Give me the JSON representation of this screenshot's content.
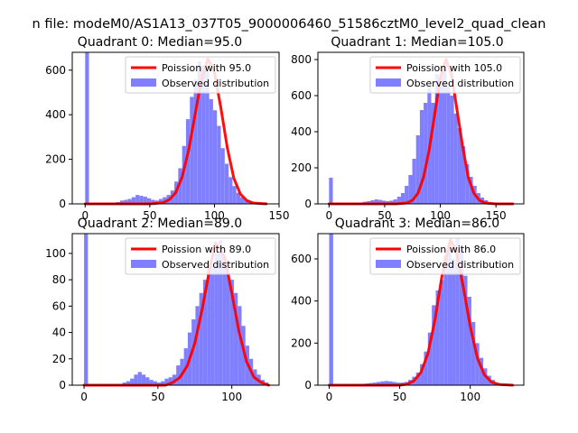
{
  "figure": {
    "suptitle": "n file: modeM0/AS1A13_037T05_9000006460_51586cztM0_level2_quad_clean"
  },
  "colors": {
    "poisson": "#ff0000",
    "observed": "#7f7fff",
    "axis": "#000000"
  },
  "chart_data": [
    {
      "type": "bar",
      "title": "Quadrant 0: Median=95.0",
      "median": 95.0,
      "xlim": [
        -10,
        150
      ],
      "ylim": [
        0,
        680
      ],
      "xticks": [
        0,
        50,
        100,
        150
      ],
      "yticks": [
        0,
        200,
        400,
        600
      ],
      "bin_width": 2.94,
      "hist": {
        "x": [
          0,
          3,
          6,
          9,
          12,
          15,
          18,
          21,
          24,
          27,
          30,
          33,
          36,
          39,
          42,
          45,
          48,
          51,
          54,
          57,
          60,
          63,
          66,
          69,
          72,
          75,
          78,
          81,
          84,
          87,
          90,
          93,
          96,
          99,
          102,
          105,
          108,
          111,
          114,
          117,
          120,
          123,
          126,
          129,
          132,
          135,
          138,
          141
        ],
        "y": [
          680,
          0,
          0,
          0,
          0,
          2,
          3,
          5,
          8,
          15,
          18,
          22,
          30,
          40,
          36,
          32,
          25,
          18,
          15,
          22,
          30,
          40,
          60,
          100,
          160,
          260,
          380,
          480,
          560,
          640,
          620,
          600,
          470,
          420,
          350,
          250,
          180,
          120,
          80,
          50,
          30,
          18,
          10,
          6,
          3,
          2,
          1,
          0
        ]
      },
      "poisson": {
        "x": [
          0,
          50,
          60,
          65,
          70,
          75,
          80,
          85,
          90,
          95,
          100,
          105,
          110,
          115,
          120,
          125,
          130,
          140
        ],
        "y": [
          0,
          0,
          5,
          18,
          50,
          120,
          240,
          400,
          560,
          650,
          590,
          430,
          250,
          115,
          45,
          15,
          4,
          0
        ]
      },
      "legend": {
        "line_label": "Poission with 95.0",
        "bar_label": "Observed distribution",
        "position": "upper right"
      }
    },
    {
      "type": "bar",
      "title": "Quadrant 1: Median=105.0",
      "median": 105.0,
      "xlim": [
        -10,
        175
      ],
      "ylim": [
        0,
        840
      ],
      "xticks": [
        0,
        50,
        100,
        150
      ],
      "yticks": [
        0,
        200,
        400,
        600,
        800
      ],
      "bin_width": 3.4,
      "hist": {
        "x": [
          0,
          3.4,
          6.8,
          10.2,
          13.6,
          17,
          20.4,
          23.8,
          27.2,
          30.6,
          34,
          37.4,
          40.8,
          44.2,
          47.6,
          51,
          54.4,
          57.8,
          61.2,
          64.6,
          68,
          71.4,
          74.8,
          78.2,
          81.6,
          85,
          88.4,
          91.8,
          95.2,
          98.6,
          102,
          105.4,
          108.8,
          112.2,
          115.6,
          119,
          122.4,
          125.8,
          129.2,
          132.6,
          136,
          139.4,
          142.8,
          146.2,
          149.6,
          153,
          156.4,
          159.8,
          163.2
        ],
        "y": [
          145,
          0,
          0,
          0,
          0,
          2,
          3,
          5,
          8,
          12,
          15,
          20,
          25,
          22,
          18,
          15,
          18,
          25,
          40,
          60,
          100,
          160,
          250,
          380,
          520,
          560,
          640,
          560,
          720,
          700,
          760,
          650,
          600,
          500,
          420,
          320,
          220,
          150,
          100,
          60,
          35,
          20,
          10,
          5,
          3,
          2,
          1,
          0,
          0
        ]
      },
      "poisson": {
        "x": [
          0,
          60,
          70,
          75,
          80,
          85,
          90,
          95,
          100,
          105,
          110,
          115,
          120,
          125,
          130,
          135,
          140,
          150,
          165
        ],
        "y": [
          0,
          0,
          5,
          20,
          60,
          150,
          300,
          500,
          700,
          800,
          720,
          520,
          320,
          150,
          60,
          20,
          5,
          0,
          0
        ]
      },
      "legend": {
        "line_label": "Poission with 105.0",
        "bar_label": "Observed distribution",
        "position": "upper right"
      }
    },
    {
      "type": "bar",
      "title": "Quadrant 2: Median=89.0",
      "median": 89.0,
      "xlim": [
        -8,
        132
      ],
      "ylim": [
        0,
        115
      ],
      "xticks": [
        0,
        50,
        100
      ],
      "yticks": [
        0,
        20,
        40,
        60,
        80,
        100
      ],
      "bin_width": 2.6,
      "hist": {
        "x": [
          0,
          2.6,
          5.2,
          7.8,
          10.4,
          13,
          15.6,
          18.2,
          20.8,
          23.4,
          26,
          28.6,
          31.2,
          33.8,
          36.4,
          39,
          41.6,
          44.2,
          46.8,
          49.4,
          52,
          54.6,
          57.2,
          59.8,
          62.4,
          65,
          67.6,
          70.2,
          72.8,
          75.4,
          78,
          80.6,
          83.2,
          85.8,
          88.4,
          91,
          93.6,
          96.2,
          98.8,
          101.4,
          104,
          106.6,
          109.2,
          111.8,
          114.4,
          117,
          119.6,
          122.2
        ],
        "y": [
          115,
          0,
          0,
          0,
          0,
          0,
          0,
          0,
          0,
          0,
          2,
          3,
          5,
          8,
          10,
          8,
          6,
          4,
          3,
          2,
          3,
          5,
          6,
          8,
          15,
          20,
          28,
          40,
          50,
          60,
          70,
          80,
          95,
          90,
          100,
          110,
          98,
          85,
          80,
          70,
          60,
          45,
          30,
          20,
          12,
          8,
          4,
          2
        ]
      },
      "poisson": {
        "x": [
          0,
          55,
          60,
          65,
          70,
          75,
          80,
          85,
          89,
          95,
          100,
          105,
          110,
          115,
          120,
          125
        ],
        "y": [
          0,
          0,
          2,
          6,
          15,
          32,
          58,
          88,
          108,
          98,
          70,
          40,
          18,
          6,
          2,
          0
        ]
      },
      "legend": {
        "line_label": "Poission with 89.0",
        "bar_label": "Observed distribution",
        "position": "upper right"
      }
    },
    {
      "type": "bar",
      "title": "Quadrant 3: Median=86.0",
      "median": 86.0,
      "xlim": [
        -8,
        138
      ],
      "ylim": [
        0,
        720
      ],
      "xticks": [
        0,
        50,
        100
      ],
      "yticks": [
        0,
        200,
        400,
        600
      ],
      "bin_width": 2.8,
      "hist": {
        "x": [
          0,
          2.8,
          5.6,
          8.4,
          11.2,
          14,
          16.8,
          19.6,
          22.4,
          25.2,
          28,
          30.8,
          33.6,
          36.4,
          39.2,
          42,
          44.8,
          47.6,
          50.4,
          53.2,
          56,
          58.8,
          61.6,
          64.4,
          67.2,
          70,
          72.8,
          75.6,
          78.4,
          81.2,
          84,
          86.8,
          89.6,
          92.4,
          95.2,
          98,
          100.8,
          103.6,
          106.4,
          109.2,
          112,
          114.8,
          117.6,
          120.4,
          123.2,
          126
        ],
        "y": [
          720,
          0,
          0,
          0,
          0,
          0,
          2,
          3,
          5,
          8,
          10,
          12,
          15,
          18,
          20,
          18,
          15,
          12,
          12,
          15,
          25,
          40,
          60,
          100,
          160,
          250,
          380,
          450,
          500,
          620,
          680,
          600,
          700,
          650,
          520,
          420,
          300,
          200,
          130,
          80,
          45,
          25,
          12,
          6,
          3,
          1
        ]
      },
      "poisson": {
        "x": [
          0,
          50,
          55,
          60,
          65,
          70,
          75,
          80,
          86,
          90,
          95,
          100,
          105,
          110,
          115,
          120,
          130
        ],
        "y": [
          0,
          0,
          5,
          20,
          60,
          150,
          310,
          520,
          690,
          640,
          470,
          280,
          130,
          50,
          15,
          4,
          0
        ]
      },
      "legend": {
        "line_label": "Poission with 86.0",
        "bar_label": "Observed distribution",
        "position": "upper right"
      }
    }
  ]
}
